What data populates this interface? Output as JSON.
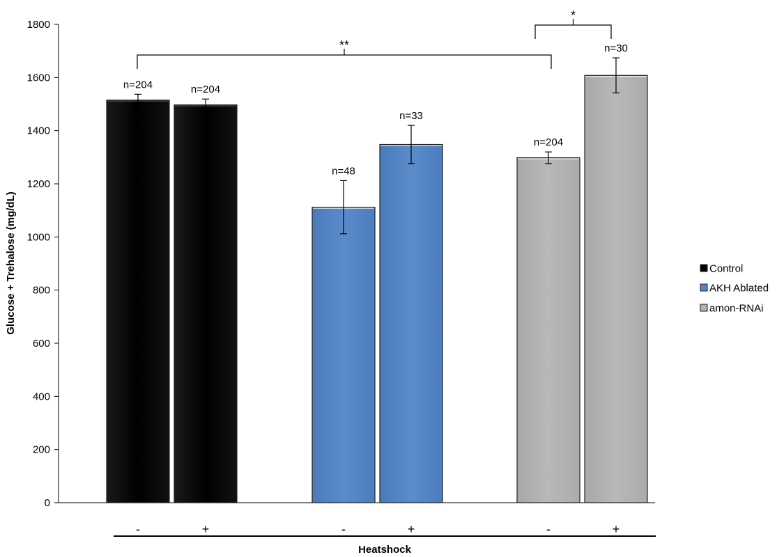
{
  "chart_data": {
    "type": "bar",
    "ylabel": "Glucose + Trehalose (mg/dL)",
    "xlabel": "Heatshock",
    "ylim": [
      0,
      1800
    ],
    "yticks": [
      0,
      200,
      400,
      600,
      800,
      1000,
      1200,
      1400,
      1600,
      1800
    ],
    "grid": false,
    "legend_position": "right",
    "groups": [
      {
        "name": "Control",
        "color": "#000000",
        "bars": [
          {
            "heatshock": "-",
            "value": 1515,
            "error": 22,
            "n_label": "n=204"
          },
          {
            "heatshock": "+",
            "value": 1497,
            "error": 22,
            "n_label": "n=204"
          }
        ]
      },
      {
        "name": "AKH Ablated",
        "color": "#5585C4",
        "bars": [
          {
            "heatshock": "-",
            "value": 1112,
            "error": 100,
            "n_label": "n=48"
          },
          {
            "heatshock": "+",
            "value": 1348,
            "error": 72,
            "n_label": "n=33"
          }
        ]
      },
      {
        "name": "amon-RNAi",
        "color": "#B2B2B2",
        "bars": [
          {
            "heatshock": "-",
            "value": 1298,
            "error": 22,
            "n_label": "n=204"
          },
          {
            "heatshock": "+",
            "value": 1608,
            "error": 66,
            "n_label": "n=30"
          }
        ]
      }
    ],
    "annotations": [
      {
        "label": "**",
        "from": "Control -",
        "to": "amon-RNAi -"
      },
      {
        "label": "*",
        "from": "amon-RNAi -",
        "to": "amon-RNAi +"
      }
    ]
  }
}
